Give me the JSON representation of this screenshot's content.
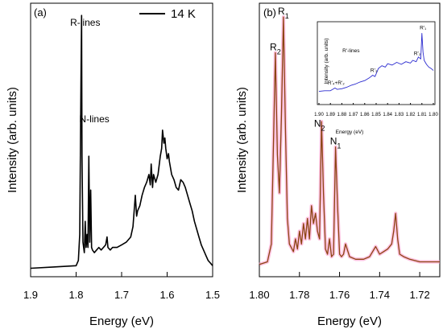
{
  "chart_data": [
    {
      "panel_label": "(a)",
      "type": "line",
      "xlabel": "Energy (eV)",
      "ylabel": "Intensity (arb. units)",
      "xlim": [
        1.9,
        1.5
      ],
      "x_reversed": true,
      "x_ticks": [
        "1.9",
        "1.8",
        "1.7",
        "1.6",
        "1.5"
      ],
      "y_ticks": [],
      "legend": {
        "label": "14 K",
        "position": "top-right",
        "color": "#000000"
      },
      "annotations": [
        {
          "text": "R-lines",
          "x": 1.78,
          "y": 0.95
        },
        {
          "text": "N-lines",
          "x": 1.76,
          "y": 0.58
        }
      ],
      "series": [
        {
          "color": "#000000",
          "x": [
            1.9,
            1.85,
            1.8,
            1.795,
            1.792,
            1.789,
            1.788,
            1.787,
            1.785,
            1.782,
            1.78,
            1.778,
            1.776,
            1.774,
            1.772,
            1.77,
            1.768,
            1.766,
            1.764,
            1.76,
            1.755,
            1.75,
            1.745,
            1.74,
            1.735,
            1.732,
            1.73,
            1.725,
            1.72,
            1.71,
            1.7,
            1.69,
            1.68,
            1.675,
            1.67,
            1.667,
            1.665,
            1.66,
            1.655,
            1.65,
            1.645,
            1.64,
            1.637,
            1.635,
            1.632,
            1.63,
            1.625,
            1.62,
            1.615,
            1.612,
            1.61,
            1.607,
            1.605,
            1.603,
            1.6,
            1.597,
            1.595,
            1.59,
            1.585,
            1.58,
            1.575,
            1.57,
            1.565,
            1.56,
            1.555,
            1.55,
            1.545,
            1.54,
            1.535,
            1.53,
            1.525,
            1.52,
            1.515,
            1.51,
            1.505,
            1.5
          ],
          "y": [
            0.02,
            0.025,
            0.03,
            0.05,
            0.15,
            0.8,
            0.99,
            0.45,
            0.12,
            0.08,
            0.2,
            0.1,
            0.15,
            0.1,
            0.45,
            0.12,
            0.32,
            0.1,
            0.09,
            0.08,
            0.09,
            0.1,
            0.09,
            0.1,
            0.11,
            0.14,
            0.1,
            0.09,
            0.1,
            0.1,
            0.11,
            0.12,
            0.14,
            0.18,
            0.3,
            0.22,
            0.24,
            0.26,
            0.3,
            0.33,
            0.35,
            0.38,
            0.34,
            0.42,
            0.33,
            0.38,
            0.35,
            0.38,
            0.45,
            0.48,
            0.55,
            0.5,
            0.52,
            0.48,
            0.44,
            0.46,
            0.43,
            0.38,
            0.36,
            0.33,
            0.32,
            0.36,
            0.35,
            0.33,
            0.3,
            0.27,
            0.24,
            0.2,
            0.17,
            0.14,
            0.11,
            0.09,
            0.07,
            0.05,
            0.04,
            0.03
          ]
        }
      ]
    },
    {
      "panel_label": "(b)",
      "type": "line",
      "xlabel": "Energy (eV)",
      "ylabel": "Intensity (arb. units)",
      "xlim": [
        1.8,
        1.71
      ],
      "x_reversed": true,
      "x_ticks": [
        "1.80",
        "1.78",
        "1.76",
        "1.74",
        "1.72"
      ],
      "y_ticks": [],
      "annotations": [
        {
          "text": "R",
          "sub": "1",
          "x": 1.788,
          "y": 1.0
        },
        {
          "text": "R",
          "sub": "2",
          "x": 1.792,
          "y": 0.86
        },
        {
          "text": "N",
          "sub": "2",
          "x": 1.77,
          "y": 0.56
        },
        {
          "text": "N",
          "sub": "1",
          "x": 1.762,
          "y": 0.49
        }
      ],
      "series": [
        {
          "color": "#8b4513",
          "glow": "#ff99cc",
          "x": [
            1.8,
            1.796,
            1.794,
            1.792,
            1.791,
            1.79,
            1.789,
            1.788,
            1.787,
            1.786,
            1.785,
            1.783,
            1.782,
            1.781,
            1.78,
            1.779,
            1.778,
            1.777,
            1.776,
            1.775,
            1.774,
            1.773,
            1.772,
            1.771,
            1.77,
            1.769,
            1.768,
            1.767,
            1.766,
            1.765,
            1.764,
            1.763,
            1.762,
            1.761,
            1.76,
            1.759,
            1.758,
            1.757,
            1.755,
            1.752,
            1.75,
            1.748,
            1.745,
            1.742,
            1.74,
            1.738,
            1.736,
            1.734,
            1.733,
            1.732,
            1.731,
            1.73,
            1.728,
            1.725,
            1.72,
            1.715,
            1.71
          ],
          "y": [
            0.02,
            0.03,
            0.1,
            0.85,
            0.45,
            0.3,
            0.6,
            0.99,
            0.55,
            0.2,
            0.1,
            0.07,
            0.12,
            0.08,
            0.15,
            0.1,
            0.18,
            0.12,
            0.2,
            0.12,
            0.25,
            0.18,
            0.22,
            0.15,
            0.12,
            0.58,
            0.3,
            0.08,
            0.06,
            0.12,
            0.05,
            0.06,
            0.48,
            0.25,
            0.06,
            0.05,
            0.06,
            0.1,
            0.05,
            0.04,
            0.04,
            0.04,
            0.05,
            0.09,
            0.06,
            0.07,
            0.08,
            0.1,
            0.15,
            0.22,
            0.12,
            0.06,
            0.05,
            0.04,
            0.03,
            0.03,
            0.03
          ]
        }
      ],
      "inset": {
        "xlabel": "Energy (eV)",
        "ylabel": "Intensity (arb. units)",
        "xlim": [
          1.9,
          1.8
        ],
        "x_reversed": true,
        "x_ticks": [
          "1.90",
          "1.89",
          "1.88",
          "1.87",
          "1.86",
          "1.85",
          "1.84",
          "1.83",
          "1.82",
          "1.81",
          "1.80"
        ],
        "annotations": [
          {
            "text": "R'-lines",
            "x": 1.872,
            "y": 0.62
          },
          {
            "text": "R'₄+R'₂",
            "x": 1.885,
            "y": 0.14
          },
          {
            "text": "R'₃",
            "x": 1.852,
            "y": 0.33
          },
          {
            "text": "R'₂",
            "x": 1.814,
            "y": 0.58
          },
          {
            "text": "R'₁",
            "x": 1.809,
            "y": 0.96
          }
        ],
        "series": [
          {
            "color": "#2a2acf",
            "x": [
              1.9,
              1.895,
              1.89,
              1.886,
              1.884,
              1.88,
              1.876,
              1.872,
              1.868,
              1.864,
              1.86,
              1.856,
              1.853,
              1.851,
              1.848,
              1.845,
              1.842,
              1.84,
              1.836,
              1.832,
              1.828,
              1.824,
              1.82,
              1.818,
              1.815,
              1.813,
              1.811,
              1.81,
              1.809,
              1.808,
              1.806,
              1.804,
              1.802,
              1.8
            ],
            "y": [
              0.04,
              0.05,
              0.05,
              0.09,
              0.07,
              0.08,
              0.1,
              0.13,
              0.15,
              0.18,
              0.2,
              0.24,
              0.28,
              0.26,
              0.38,
              0.42,
              0.4,
              0.45,
              0.43,
              0.47,
              0.44,
              0.48,
              0.46,
              0.5,
              0.48,
              0.55,
              0.52,
              0.9,
              0.62,
              0.5,
              0.44,
              0.4,
              0.38,
              0.35
            ]
          }
        ]
      }
    }
  ]
}
